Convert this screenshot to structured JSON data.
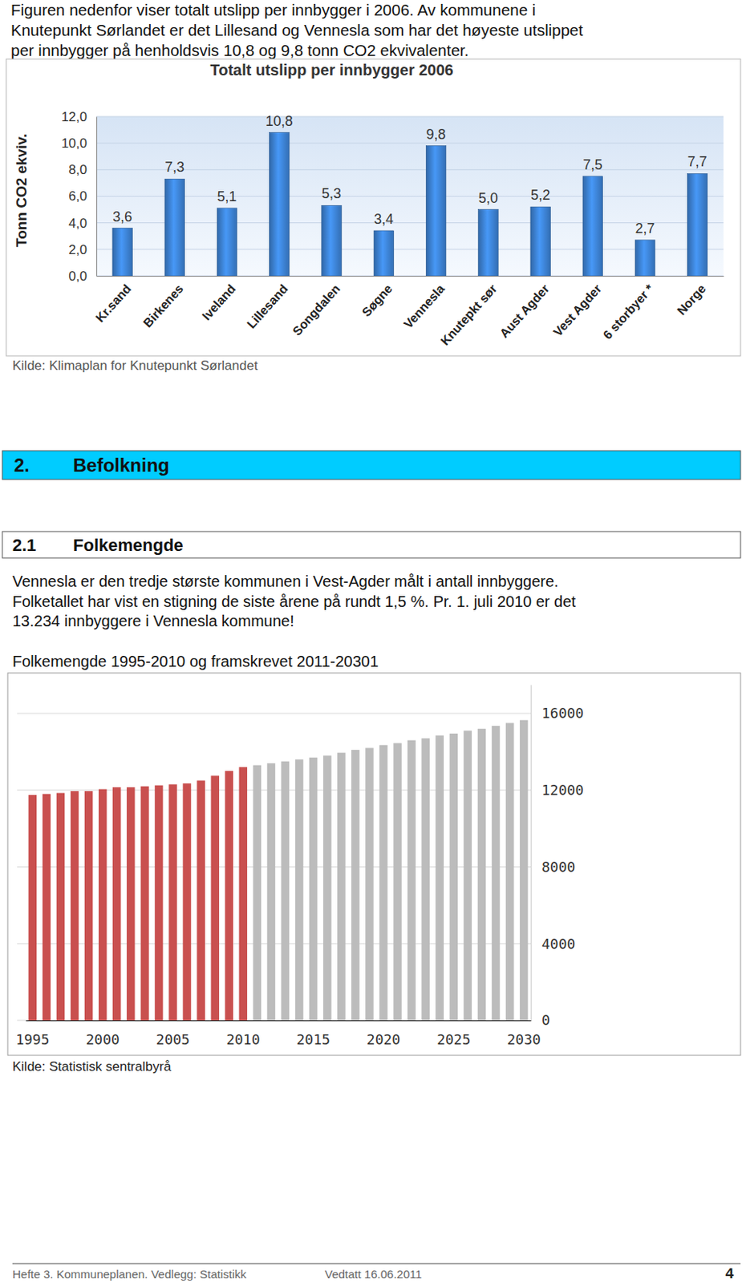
{
  "document": {
    "intro": [
      "Figuren nedenfor viser totalt utslipp per innbygger i 2006. Av kommunene i",
      "Knutepunkt Sørlandet er det Lillesand og Vennesla som har det høyeste utslippet",
      "per innbygger på henholdsvis 10,8 og 9,8 tonn CO2 ekvivalenter."
    ],
    "source_1": "Kilde: Klimaplan for Knutepunkt Sørlandet",
    "section": "2.",
    "section_title": "Befolkning",
    "subsection": "2.1",
    "subsection_title": "Folkemengde",
    "paragraph": [
      "Vennesla er den tredje største kommunen i Vest-Agder målt i antall innbyggere.",
      "Folketallet har vist en stigning de siste årene på rundt 1,5 %. Pr. 1. juli 2010 er det",
      "13.234 innbyggere i Vennesla kommune!"
    ],
    "source_2": "Kilde: Statistisk sentralbyrå",
    "footer": {
      "left": "Hefte 3. Kommuneplanen. Vedlegg: Statistikk",
      "middle": "Vedtatt 16.06.2011",
      "page": 4
    }
  },
  "chart_data": [
    {
      "type": "bar",
      "title": "Totalt utslipp per innbygger 2006",
      "y_label": "Tonn CO2 ekviv.",
      "categories": [
        "Kr.sand",
        "Birkenes",
        "Iveland",
        "Lillesand",
        "Songdalen",
        "Søgne",
        "Vennesla",
        "Knutepkt sør",
        "Aust Agder",
        "Vest Agder",
        "6 storbyer *",
        "Norge"
      ],
      "values": [
        3.6,
        7.3,
        5.1,
        10.8,
        5.3,
        3.4,
        9.8,
        5.0,
        5.2,
        7.5,
        2.7,
        7.7
      ],
      "value_labels": [
        "3,6",
        "7,3",
        "5,1",
        "10,8",
        "5,3",
        "3,4",
        "9,8",
        "5,0",
        "5,2",
        "7,5",
        "2,7",
        "7,7"
      ],
      "data_labels": true,
      "color": "#3b7fcf",
      "ylim": [
        0,
        12
      ],
      "yticks": [
        {
          "value": 0,
          "label": "0,0"
        },
        {
          "value": 2,
          "label": "2,0"
        },
        {
          "value": 4,
          "label": "4,0"
        },
        {
          "value": 6,
          "label": "6,0"
        },
        {
          "value": 8,
          "label": "8,0"
        },
        {
          "value": 10,
          "label": "10,0"
        },
        {
          "value": 12,
          "label": "12,0"
        }
      ],
      "grid": true
    },
    {
      "type": "bar",
      "title": "Folkemengde 1995-2010 og framskrevet 2011-20301",
      "categories": [
        "1995",
        null,
        null,
        null,
        null,
        "2000",
        null,
        null,
        null,
        null,
        "2005",
        null,
        null,
        null,
        null,
        "2010",
        null,
        null,
        null,
        null,
        "2015",
        null,
        null,
        null,
        null,
        "2020",
        null,
        null,
        null,
        null,
        "2025",
        null,
        null,
        null,
        null,
        "2030"
      ],
      "values": [
        11750,
        11800,
        11850,
        11950,
        11950,
        12050,
        12150,
        12150,
        12200,
        12250,
        12300,
        12350,
        12500,
        12750,
        13000,
        13200,
        13300,
        13400,
        13500,
        13600,
        13700,
        13800,
        13950,
        14100,
        14200,
        14350,
        14450,
        14600,
        14700,
        14850,
        14950,
        15100,
        15200,
        15350,
        15500,
        15650
      ],
      "colors": [
        "#c9504f",
        "#c9504f",
        "#c9504f",
        "#c9504f",
        "#c9504f",
        "#c9504f",
        "#c9504f",
        "#c9504f",
        "#c9504f",
        "#c9504f",
        "#c9504f",
        "#c9504f",
        "#c9504f",
        "#c9504f",
        "#c9504f",
        "#c9504f",
        "#bcbcbc",
        "#bcbcbc",
        "#bcbcbc",
        "#bcbcbc",
        "#bcbcbc",
        "#bcbcbc",
        "#bcbcbc",
        "#bcbcbc",
        "#bcbcbc",
        "#bcbcbc",
        "#bcbcbc",
        "#bcbcbc",
        "#bcbcbc",
        "#bcbcbc",
        "#bcbcbc",
        "#bcbcbc",
        "#bcbcbc",
        "#bcbcbc",
        "#bcbcbc",
        "#bcbcbc"
      ],
      "ylim": [
        0,
        17500
      ],
      "yticks": [
        0,
        4000,
        8000,
        12000,
        16000
      ],
      "grid": true
    }
  ]
}
